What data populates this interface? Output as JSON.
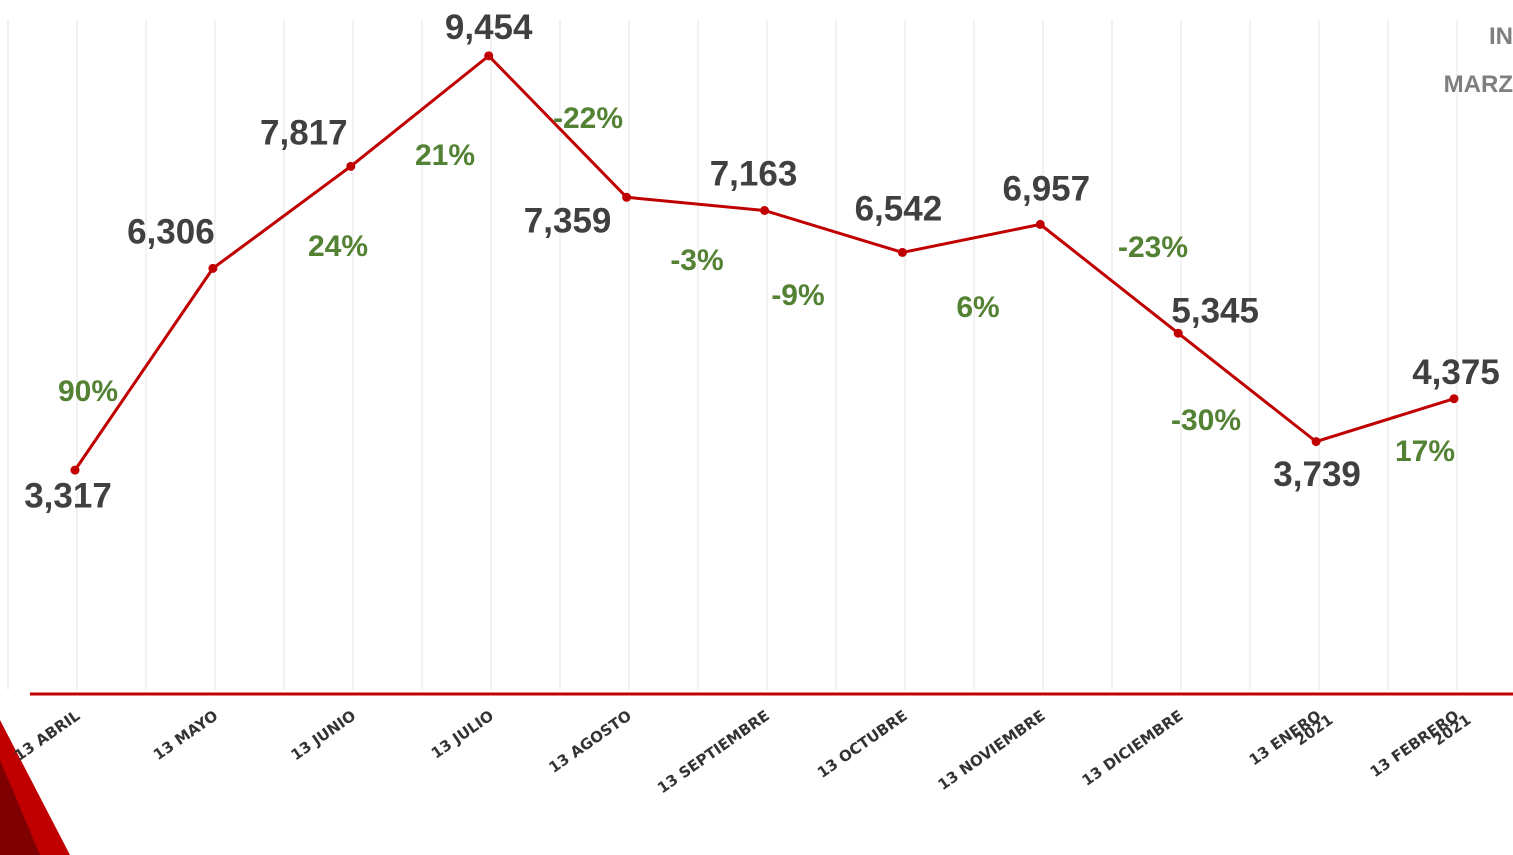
{
  "chart_data": {
    "type": "line",
    "categories": [
      "13 ABRIL",
      "13 MAYO",
      "13 JUNIO",
      "13  JULIO",
      "13  AGOSTO",
      "13  SEPTIEMBRE",
      "13 OCTUBRE",
      "13 NOVIEMBRE",
      "13 DICIEMBRE",
      "13 ENERO",
      "13 FEBRERO"
    ],
    "category_sublabels": [
      null,
      null,
      null,
      null,
      null,
      null,
      null,
      null,
      null,
      "2021",
      "2021"
    ],
    "series": [
      {
        "color": "#c00000",
        "values": [
          3317,
          6306,
          7817,
          9454,
          7359,
          7163,
          6542,
          6957,
          5345,
          3739,
          4375
        ],
        "value_labels": [
          "3,317",
          "6,306",
          "7,817",
          "9,454",
          "7,359",
          "7,163",
          "6,542",
          "6,957",
          "5,345",
          "3,739",
          "4,375"
        ]
      }
    ],
    "pct_changes": {
      "color": "#548235",
      "values": [
        90,
        24,
        21,
        -22,
        -3,
        -9,
        6,
        -23,
        -30,
        17
      ],
      "value_labels": [
        "90%",
        "24%",
        "21%",
        "-22%",
        "-3%",
        "-9%",
        "6%",
        "-23%",
        "-30%",
        "17%"
      ]
    },
    "ylim": [
      0,
      10000
    ],
    "annotations": [
      "IN",
      "MARZ"
    ]
  }
}
